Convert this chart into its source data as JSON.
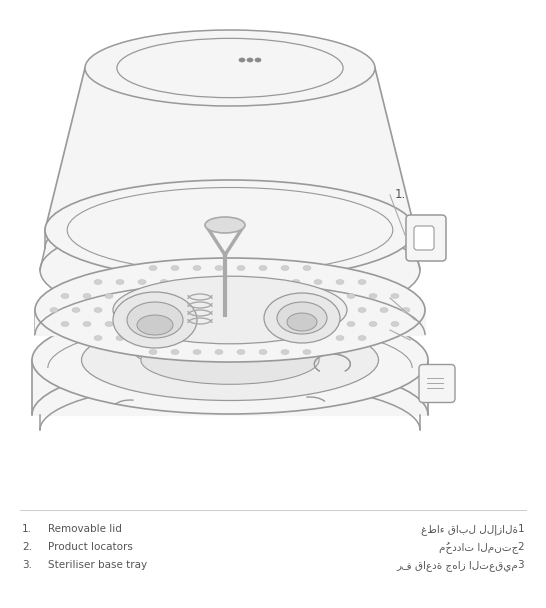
{
  "background_color": "#ffffff",
  "figure_width": 5.46,
  "figure_height": 6.08,
  "dpi": 100,
  "label_color": "#555555",
  "line_color": "#aaaaaa",
  "labels_left": [
    {
      "num": "1.",
      "text": "Removable lid"
    },
    {
      "num": "2.",
      "text": "Product locators"
    },
    {
      "num": "3.",
      "text": "Steriliser base tray"
    }
  ],
  "labels_right": [
    {
      "num": "1",
      "text": "غطاء قابل للإزالة"
    },
    {
      "num": "2",
      "text": "مُحددات المنتج"
    },
    {
      "num": "3",
      "text": "رف قاعدة جهاز التعقيم"
    }
  ],
  "ann_line_color": "#aaaaaa",
  "separator_color": "#cccccc"
}
